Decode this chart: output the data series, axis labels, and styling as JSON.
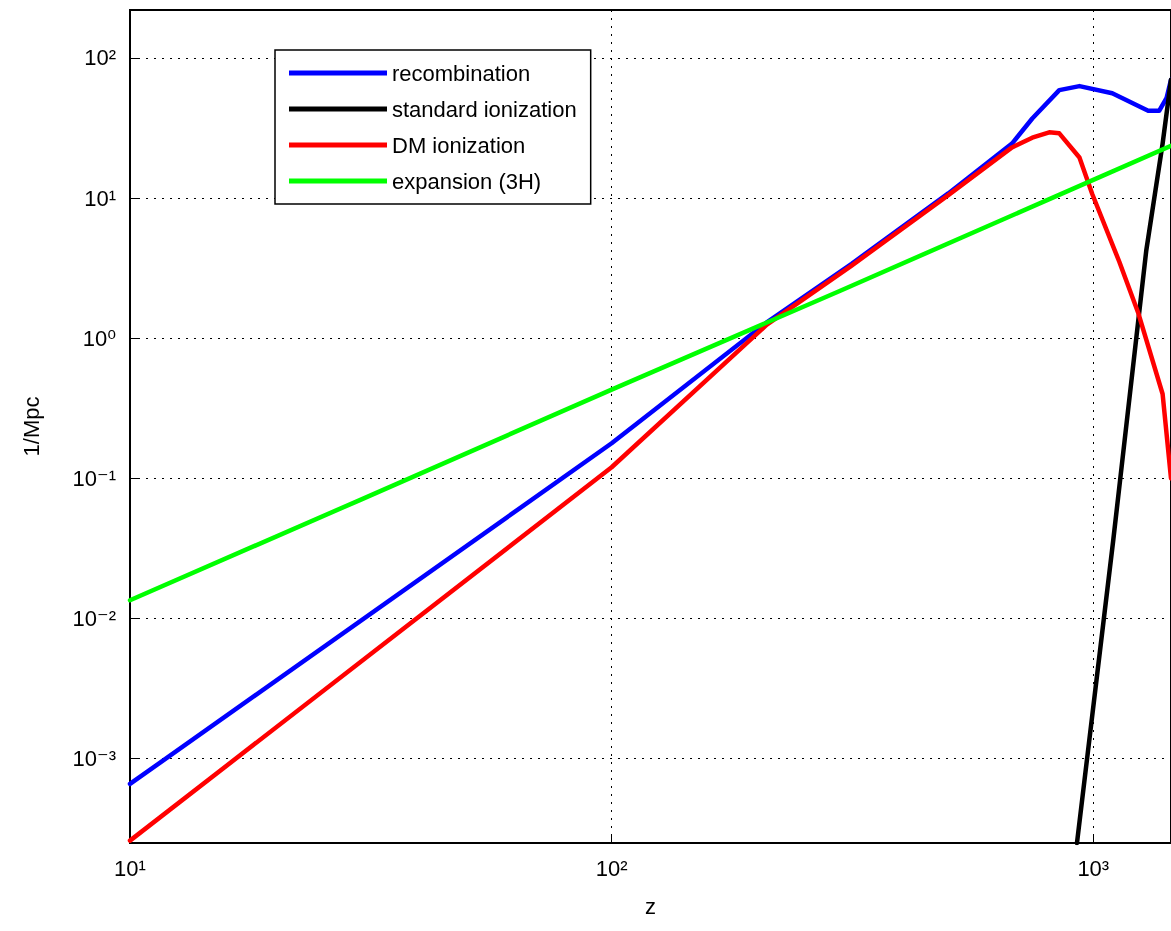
{
  "chart_data": {
    "type": "line",
    "xlabel": "z",
    "ylabel": "1/Mpc",
    "log": "xy",
    "grid": true,
    "legend": "top left",
    "marker": "none",
    "line_style": "solid",
    "xlim": [
      10,
      1450
    ],
    "ylim": [
      0.00025,
      220
    ],
    "xticks": [
      {
        "value": 10,
        "label": "10¹"
      },
      {
        "value": 100,
        "label": "10²"
      },
      {
        "value": 1000,
        "label": "10³"
      }
    ],
    "yticks": [
      {
        "value": 0.001,
        "label": "10⁻³"
      },
      {
        "value": 0.01,
        "label": "10⁻²"
      },
      {
        "value": 0.1,
        "label": "10⁻¹"
      },
      {
        "value": 1,
        "label": "10⁰"
      },
      {
        "value": 10,
        "label": "10¹"
      },
      {
        "value": 100,
        "label": "10²"
      }
    ],
    "series": [
      {
        "name": "recombination",
        "color": "#0000ff",
        "x": [
          10,
          100,
          210,
          315,
          500,
          678,
          747,
          850,
          936,
          1095,
          1300,
          1370,
          1420,
          1450
        ],
        "values": [
          0.00066,
          0.178,
          1.3,
          3.4,
          10.8,
          24.5,
          37,
          59,
          63,
          56,
          42,
          42,
          52,
          70
        ]
      },
      {
        "name": "standard ionization",
        "color": "#000000",
        "x": [
          925,
          1101,
          1288,
          1393,
          1450
        ],
        "values": [
          0.00025,
          0.037,
          4.2,
          24.5,
          70
        ]
      },
      {
        "name": "DM ionization",
        "color": "#ff0000",
        "x": [
          10,
          100,
          210,
          315,
          500,
          678,
          747,
          810,
          850,
          936,
          995,
          1133,
          1241,
          1393,
          1450
        ],
        "values": [
          0.00026,
          0.12,
          1.25,
          3.3,
          10.5,
          23,
          27,
          29.5,
          29,
          19.5,
          10.7,
          3.5,
          1.5,
          0.4,
          0.1
        ]
      },
      {
        "name": "expansion (3H)",
        "color": "#00ff00",
        "x": [
          10,
          30,
          100,
          300,
          1000,
          1450
        ],
        "values": [
          0.0135,
          0.07,
          0.43,
          2.2,
          13.5,
          23.6
        ]
      }
    ]
  }
}
